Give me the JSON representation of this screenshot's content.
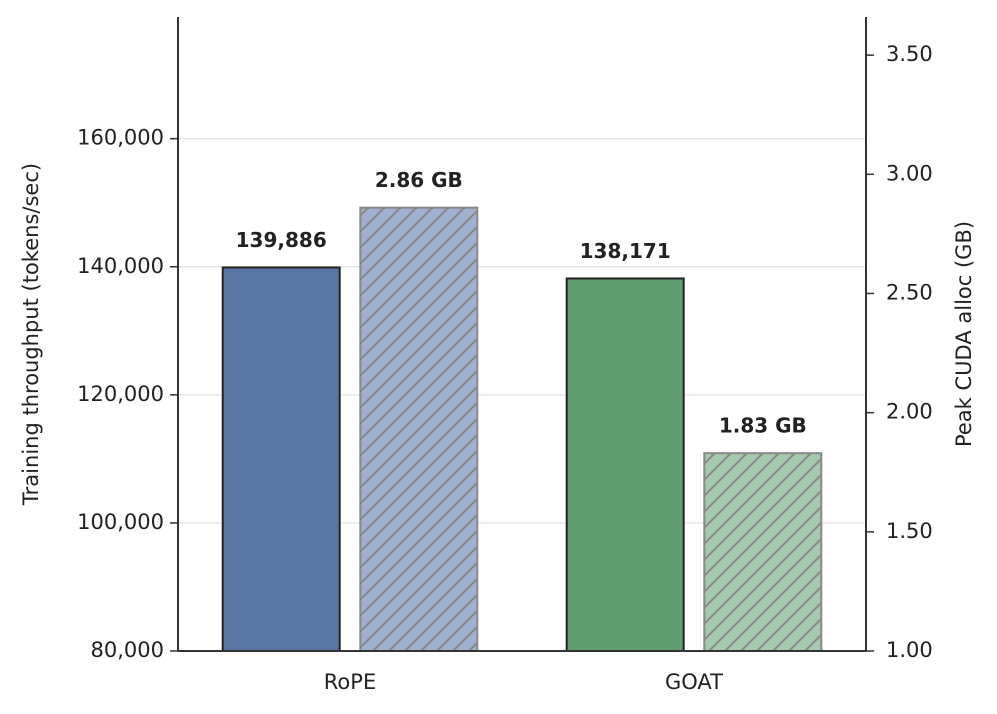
{
  "chart_data": {
    "type": "bar",
    "categories": [
      "RoPE",
      "GOAT"
    ],
    "series": [
      {
        "colors": [
          "#5875a4",
          "#5f9e6e"
        ],
        "values": [
          139886,
          138171
        ],
        "value_labels": [
          "139,886",
          "138,171"
        ]
      },
      {
        "colors": [
          "#a0b0cf",
          "#a5c9ac"
        ],
        "values": [
          2.86,
          1.83
        ],
        "value_labels": [
          "2.86 GB",
          "1.83 GB"
        ],
        "axis": "y2",
        "hatch": true
      }
    ],
    "ylabel": "Training throughput (tokens/sec)",
    "y2label": "Peak CUDA alloc (GB)",
    "ylim": [
      80000,
      179000
    ],
    "yticks": [
      {
        "value": 80000,
        "label": "80,000"
      },
      {
        "value": 100000,
        "label": "100,000"
      },
      {
        "value": 120000,
        "label": "120,000"
      },
      {
        "value": 140000,
        "label": "140,000"
      },
      {
        "value": 160000,
        "label": "160,000"
      }
    ],
    "y2lim": [
      1,
      3.66
    ],
    "y2ticks": [
      {
        "value": 1,
        "label": "1.00"
      },
      {
        "value": 1.5,
        "label": "1.50"
      },
      {
        "value": 2,
        "label": "2.00"
      },
      {
        "value": 2.5,
        "label": "2.50"
      },
      {
        "value": 3,
        "label": "3.00"
      },
      {
        "value": 3.5,
        "label": "3.50"
      }
    ],
    "grid": true
  }
}
